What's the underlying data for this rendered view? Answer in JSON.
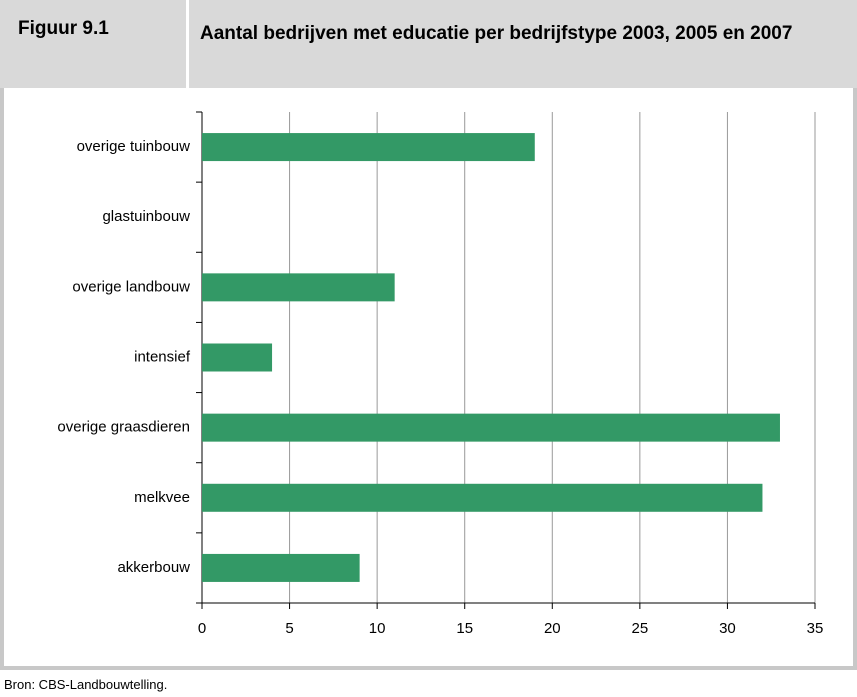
{
  "chart_data": {
    "type": "bar",
    "orientation": "horizontal",
    "figure_label": "Figuur 9.1",
    "title": "Aantal bedrijven met educatie per bedrijfstype 2003, 2005 en 2007",
    "categories": [
      "overige tuinbouw",
      "glastuinbouw",
      "overige landbouw",
      "intensief",
      "overige graasdieren",
      "melkvee",
      "akkerbouw"
    ],
    "values": [
      19,
      0,
      11,
      4,
      33,
      32,
      9
    ],
    "color": "#339966",
    "xlim": [
      0,
      35
    ],
    "xticks": [
      0,
      5,
      10,
      15,
      20,
      25,
      30,
      35
    ],
    "grid": true,
    "source": "Bron: CBS-Landbouwtelling."
  }
}
